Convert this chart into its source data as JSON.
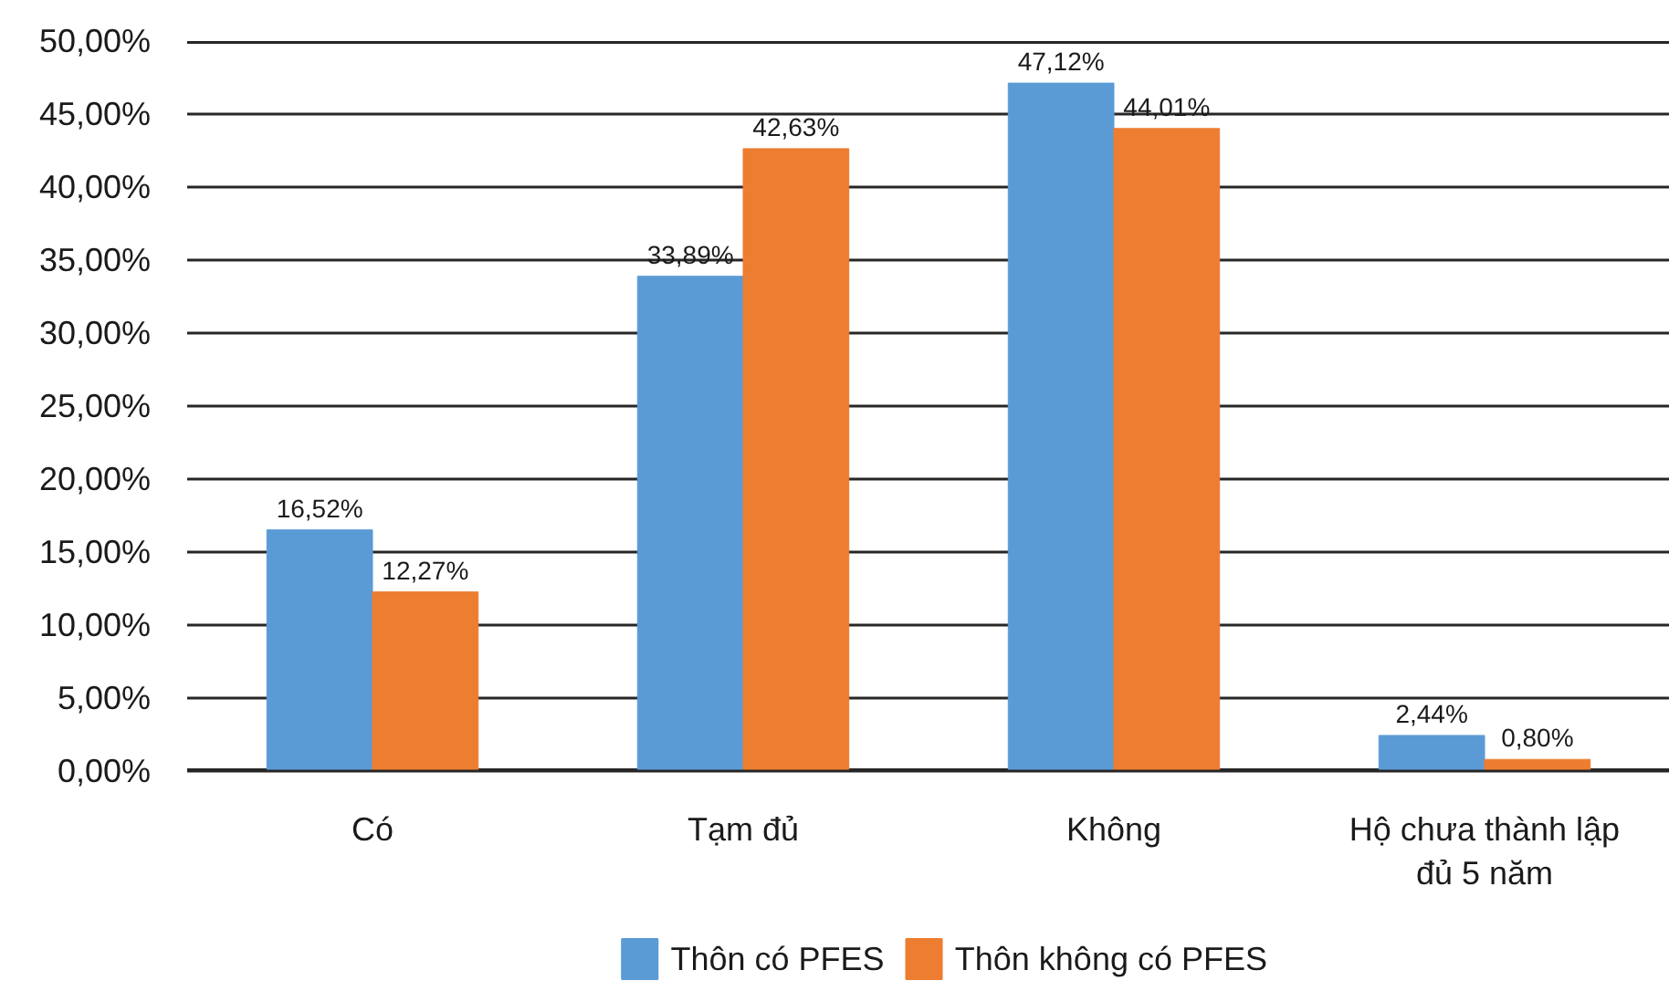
{
  "chart_data": {
    "type": "bar",
    "categories": [
      "Có",
      "Tạm đủ",
      "Không",
      "Hộ chưa thành lập\nđủ 5 năm"
    ],
    "series": [
      {
        "name": "Thôn có PFES",
        "color": "#5b9bd5",
        "values": [
          16.52,
          33.89,
          47.12,
          2.44
        ],
        "value_labels": [
          "16,52%",
          "33,89%",
          "47,12%",
          "2,44%"
        ]
      },
      {
        "name": "Thôn không có PFES",
        "color": "#ed7d31",
        "values": [
          12.27,
          42.63,
          44.01,
          0.8
        ],
        "value_labels": [
          "12,27%",
          "42,63%",
          "44,01%",
          "0,80%"
        ]
      }
    ],
    "ylim": [
      0,
      50
    ],
    "yticks": [
      {
        "value": 0,
        "label": "0,00%"
      },
      {
        "value": 5,
        "label": "5,00%"
      },
      {
        "value": 10,
        "label": "10,00%"
      },
      {
        "value": 15,
        "label": "15,00%"
      },
      {
        "value": 20,
        "label": "20,00%"
      },
      {
        "value": 25,
        "label": "25,00%"
      },
      {
        "value": 30,
        "label": "30,00%"
      },
      {
        "value": 35,
        "label": "35,00%"
      },
      {
        "value": 40,
        "label": "40,00%"
      },
      {
        "value": 45,
        "label": "45,00%"
      },
      {
        "value": 50,
        "label": "50,00%"
      }
    ],
    "grid": "y",
    "legend": "bottom"
  }
}
